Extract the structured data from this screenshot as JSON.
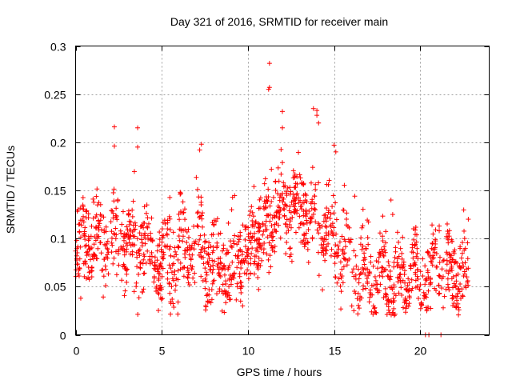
{
  "chart_data": {
    "type": "scatter",
    "title": "Day 321 of 2016, SRMTID for receiver main",
    "xlabel": "GPS time / hours",
    "ylabel": "SRMTID / TECUs",
    "xlim": [
      0,
      24
    ],
    "ylim": [
      0,
      0.3
    ],
    "xticks": [
      0,
      5,
      10,
      15,
      20
    ],
    "xtick_labels": [
      "0",
      "5",
      "10",
      "15",
      "20"
    ],
    "yticks": [
      0,
      0.05,
      0.1,
      0.15,
      0.2,
      0.25,
      0.3
    ],
    "ytick_labels": [
      "0",
      "0.05",
      "0.1",
      "0.15",
      "0.2",
      "0.25",
      "0.3"
    ],
    "grid": true,
    "marker": "+",
    "color": "#ff0000",
    "trend": {
      "x": [
        0,
        1,
        2,
        3,
        4,
        5,
        6,
        7,
        8,
        9,
        10,
        11,
        12,
        13,
        14,
        15,
        16,
        17,
        18,
        19,
        20,
        21,
        22,
        22.8
      ],
      "y": [
        0.09,
        0.095,
        0.1,
        0.1,
        0.095,
        0.075,
        0.085,
        0.095,
        0.08,
        0.07,
        0.09,
        0.11,
        0.13,
        0.14,
        0.115,
        0.1,
        0.075,
        0.06,
        0.06,
        0.055,
        0.06,
        0.065,
        0.06,
        0.065
      ]
    },
    "scatter_sd": 0.022,
    "n_points": 1600,
    "highlights": {
      "x": [
        2.25,
        2.25,
        3.6,
        3.6,
        7.3,
        7.2,
        11.25,
        11.25,
        11.2,
        12.0,
        12.0,
        13.8,
        14.0,
        14.0,
        14.1,
        15.0,
        15.1,
        16.2,
        18.3,
        18.4,
        21.1,
        21.1,
        0.3,
        3.4,
        20.3,
        20.5,
        21.2
      ],
      "y": [
        0.216,
        0.196,
        0.215,
        0.195,
        0.198,
        0.192,
        0.282,
        0.257,
        0.255,
        0.232,
        0.215,
        0.235,
        0.233,
        0.228,
        0.22,
        0.197,
        0.19,
        0.144,
        0.14,
        0.125,
        0.113,
        0.108,
        0.038,
        0.045,
        0.0,
        0.0,
        0.0
      ]
    }
  }
}
